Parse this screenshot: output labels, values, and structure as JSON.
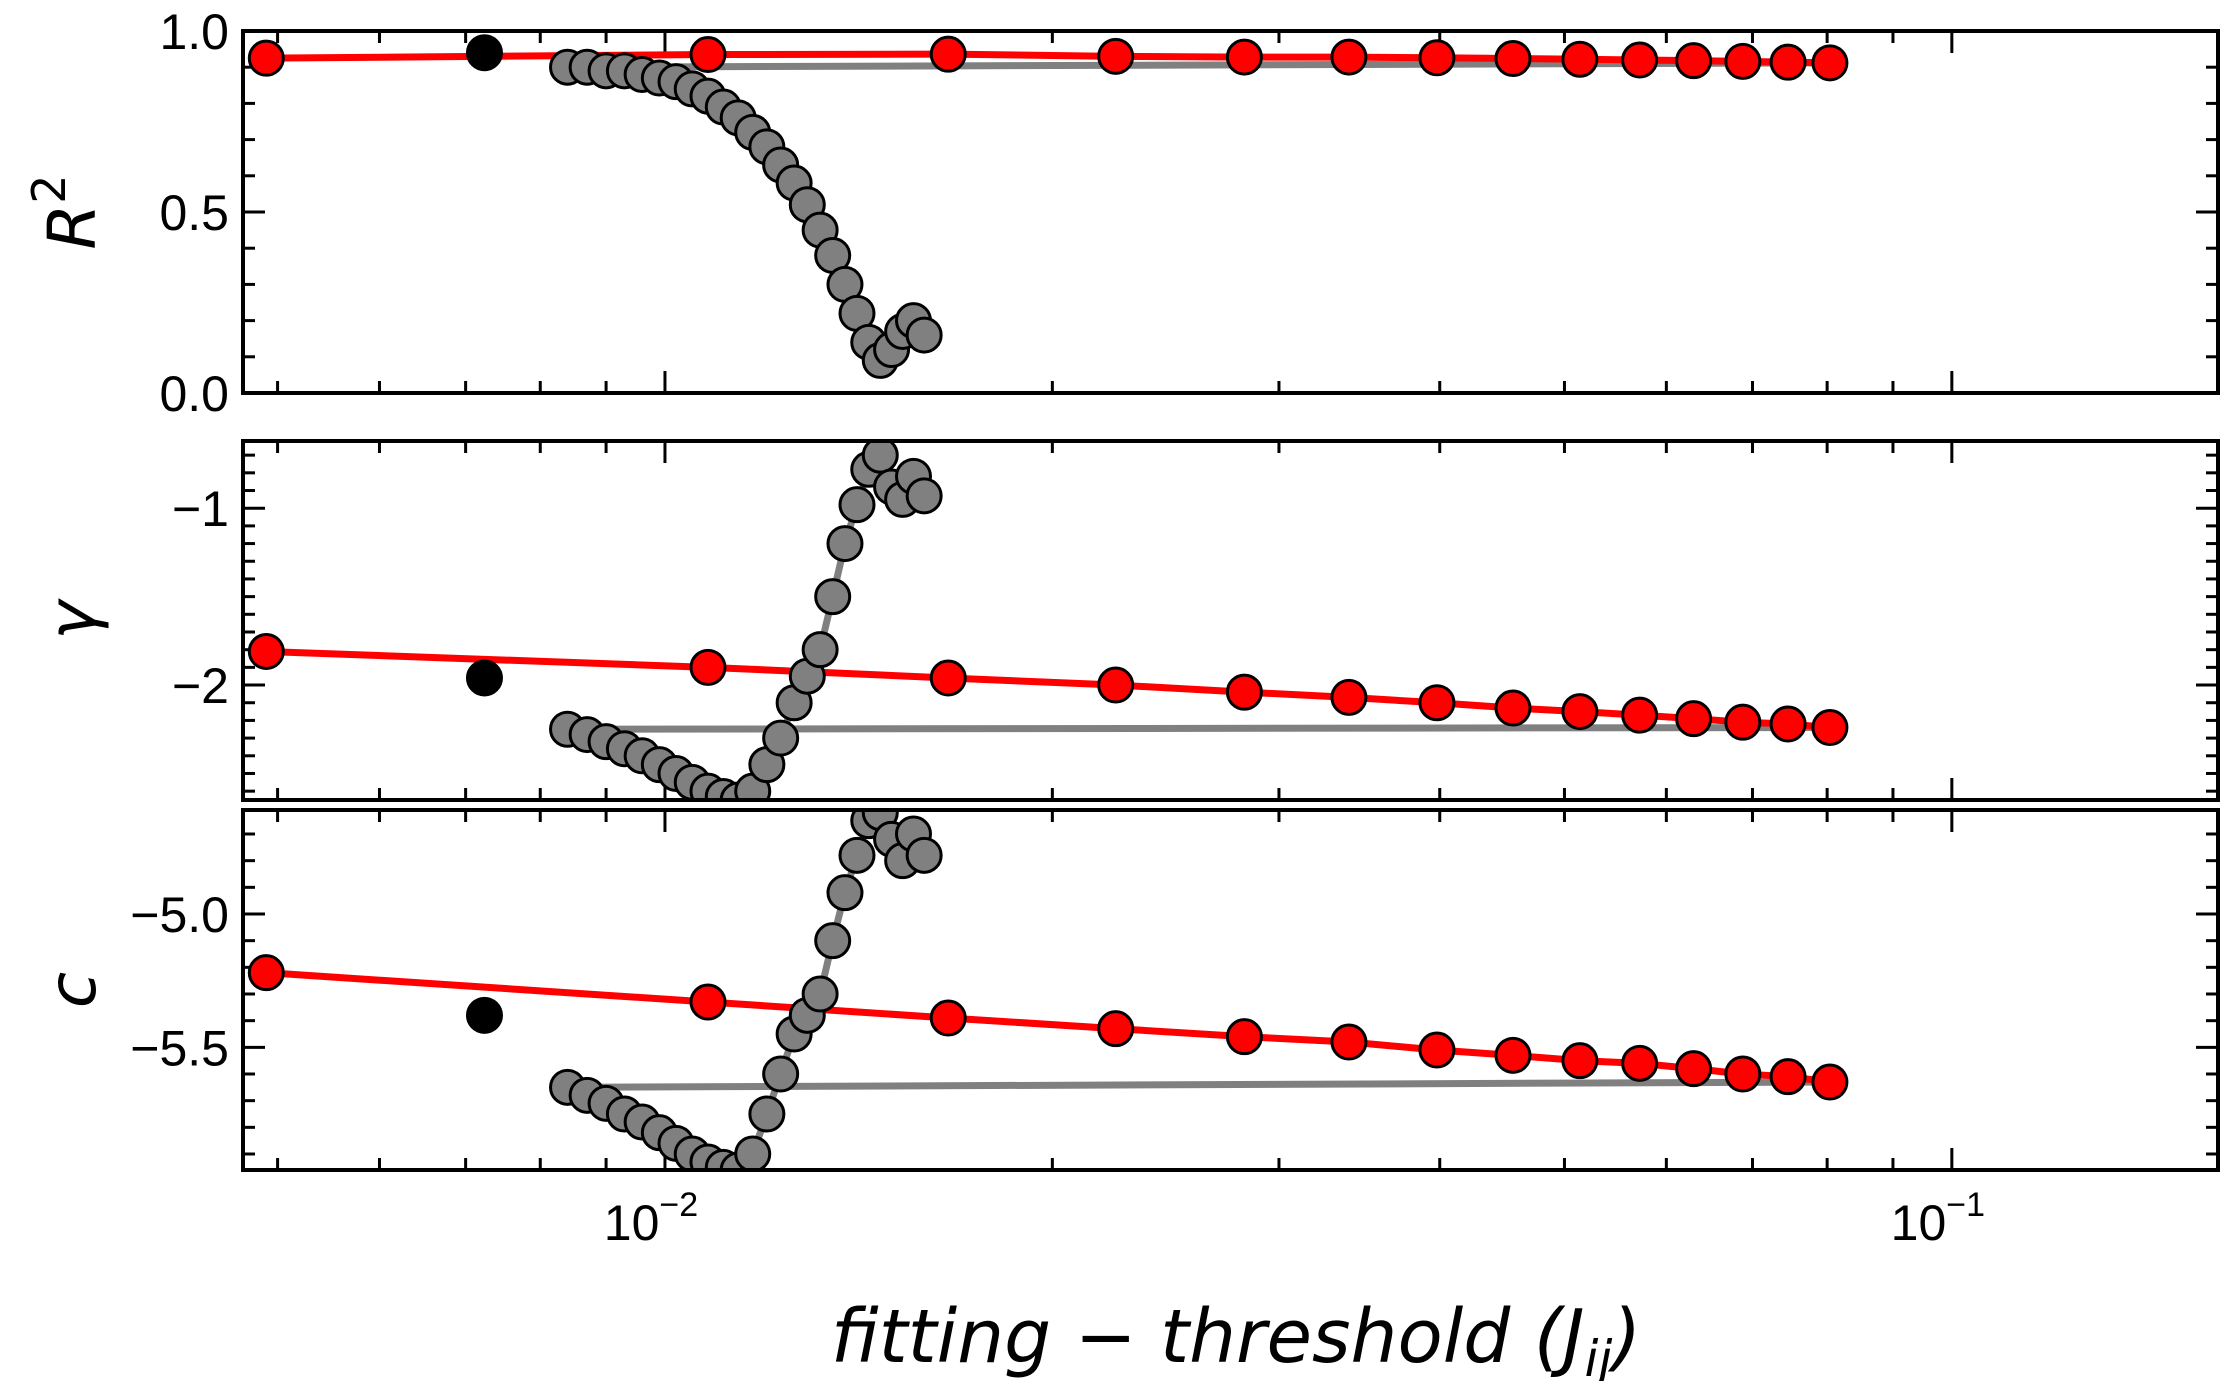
{
  "figure": {
    "xlabel_parts": [
      "fitting",
      " − ",
      "threshold",
      " (",
      "J",
      "ij",
      ")"
    ],
    "x_ticks": [
      {
        "value": 0.01,
        "base": "10",
        "exp": "−2"
      },
      {
        "value": 0.1,
        "base": "10",
        "exp": "−1"
      }
    ]
  },
  "chart_data": [
    {
      "type": "scatter",
      "panel": "top",
      "ylabel": "R",
      "ylabel_sup": "2",
      "x_scale": "log",
      "xlim": [
        0.0047,
        0.161
      ],
      "ylim": [
        0.0,
        1.0
      ],
      "yticks": [
        0.0,
        0.5,
        1.0
      ],
      "ytick_labels": [
        "0.0",
        "0.5",
        "1.0"
      ],
      "colors": {
        "fit": "#ff0000",
        "excluded": "#808080",
        "selected": "#000000",
        "line_fit": "#ff0000",
        "line_excluded": "#808080"
      },
      "series": [
        {
          "role": "fit",
          "x": [
            0.0049,
            0.0108,
            0.0166,
            0.0224,
            0.0282,
            0.034,
            0.0398,
            0.0456,
            0.0514,
            0.0572,
            0.063,
            0.0688,
            0.0746,
            0.0804
          ],
          "y": [
            0.925,
            0.935,
            0.936,
            0.93,
            0.928,
            0.928,
            0.926,
            0.924,
            0.922,
            0.92,
            0.918,
            0.916,
            0.914,
            0.912
          ]
        },
        {
          "role": "excluded",
          "x": [
            0.0084,
            0.0087,
            0.009,
            0.0093,
            0.0096,
            0.0099,
            0.0102,
            0.0105,
            0.0108,
            0.0111,
            0.0114,
            0.0117,
            0.012,
            0.0123,
            0.0126,
            0.0129,
            0.0132,
            0.0135,
            0.0138,
            0.0141,
            0.0144,
            0.0147,
            0.015,
            0.0153,
            0.0156,
            0.0159
          ],
          "y": [
            0.9,
            0.9,
            0.89,
            0.89,
            0.88,
            0.87,
            0.86,
            0.84,
            0.82,
            0.79,
            0.76,
            0.72,
            0.68,
            0.63,
            0.58,
            0.52,
            0.45,
            0.38,
            0.3,
            0.22,
            0.14,
            0.09,
            0.12,
            0.17,
            0.2,
            0.16
          ]
        },
        {
          "role": "selected",
          "x": [
            0.00724
          ],
          "y": [
            0.94
          ]
        }
      ]
    },
    {
      "type": "scatter",
      "panel": "middle",
      "ylabel": "γ",
      "x_scale": "log",
      "xlim": [
        0.0047,
        0.161
      ],
      "ylim": [
        -2.65,
        -0.62
      ],
      "yticks": [
        -2,
        -1
      ],
      "ytick_labels": [
        "−2",
        "−1"
      ],
      "colors": {
        "fit": "#ff0000",
        "excluded": "#808080",
        "selected": "#000000",
        "line_fit": "#ff0000",
        "line_excluded": "#808080"
      },
      "series": [
        {
          "role": "fit",
          "x": [
            0.0049,
            0.0108,
            0.0166,
            0.0224,
            0.0282,
            0.034,
            0.0398,
            0.0456,
            0.0514,
            0.0572,
            0.063,
            0.0688,
            0.0746,
            0.0804
          ],
          "y": [
            -1.81,
            -1.9,
            -1.96,
            -2.0,
            -2.04,
            -2.07,
            -2.1,
            -2.13,
            -2.15,
            -2.17,
            -2.19,
            -2.21,
            -2.22,
            -2.24
          ]
        },
        {
          "role": "excluded",
          "x": [
            0.0084,
            0.0087,
            0.009,
            0.0093,
            0.0096,
            0.0099,
            0.0102,
            0.0105,
            0.0108,
            0.0111,
            0.0114,
            0.0117,
            0.012,
            0.0123,
            0.0126,
            0.0129,
            0.0132,
            0.0135,
            0.0138,
            0.0141,
            0.0144,
            0.0147,
            0.015,
            0.0153,
            0.0156,
            0.0159
          ],
          "y": [
            -2.25,
            -2.28,
            -2.32,
            -2.36,
            -2.4,
            -2.45,
            -2.5,
            -2.55,
            -2.6,
            -2.63,
            -2.65,
            -2.6,
            -2.45,
            -2.3,
            -2.1,
            -1.95,
            -1.8,
            -1.5,
            -1.2,
            -0.98,
            -0.78,
            -0.7,
            -0.88,
            -0.95,
            -0.82,
            -0.93
          ]
        },
        {
          "role": "selected",
          "x": [
            0.00724
          ],
          "y": [
            -1.96
          ]
        }
      ]
    },
    {
      "type": "scatter",
      "panel": "bottom",
      "ylabel": "c",
      "x_scale": "log",
      "xlim": [
        0.0047,
        0.161
      ],
      "ylim": [
        -5.96,
        -4.61
      ],
      "yticks": [
        -5.5,
        -5.0
      ],
      "ytick_labels": [
        "−5.5",
        "−5.0"
      ],
      "colors": {
        "fit": "#ff0000",
        "excluded": "#808080",
        "selected": "#000000",
        "line_fit": "#ff0000",
        "line_excluded": "#808080"
      },
      "series": [
        {
          "role": "fit",
          "x": [
            0.0049,
            0.0108,
            0.0166,
            0.0224,
            0.0282,
            0.034,
            0.0398,
            0.0456,
            0.0514,
            0.0572,
            0.063,
            0.0688,
            0.0746,
            0.0804
          ],
          "y": [
            -5.22,
            -5.33,
            -5.39,
            -5.43,
            -5.46,
            -5.48,
            -5.51,
            -5.53,
            -5.55,
            -5.56,
            -5.58,
            -5.6,
            -5.61,
            -5.63
          ]
        },
        {
          "role": "excluded",
          "x": [
            0.0084,
            0.0087,
            0.009,
            0.0093,
            0.0096,
            0.0099,
            0.0102,
            0.0105,
            0.0108,
            0.0111,
            0.0114,
            0.0117,
            0.012,
            0.0123,
            0.0126,
            0.0129,
            0.0132,
            0.0135,
            0.0138,
            0.0141,
            0.0144,
            0.0147,
            0.015,
            0.0153,
            0.0156,
            0.0159
          ],
          "y": [
            -5.65,
            -5.68,
            -5.71,
            -5.75,
            -5.78,
            -5.82,
            -5.86,
            -5.9,
            -5.93,
            -5.95,
            -5.96,
            -5.9,
            -5.75,
            -5.6,
            -5.45,
            -5.38,
            -5.3,
            -5.1,
            -4.92,
            -4.78,
            -4.65,
            -4.62,
            -4.72,
            -4.8,
            -4.7,
            -4.78
          ]
        },
        {
          "role": "selected",
          "x": [
            0.00724
          ],
          "y": [
            -5.38
          ]
        }
      ]
    }
  ]
}
